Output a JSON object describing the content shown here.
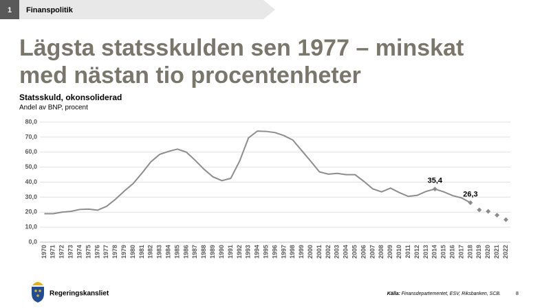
{
  "header": {
    "number": "1",
    "section": "Finanspolitik"
  },
  "title_line1": "Lägsta statsskulden sen 1977 – minskat",
  "title_line2": "med nästan tio procentenheter",
  "chart_data": {
    "type": "line",
    "title": "Statsskuld, okonsoliderad",
    "subtitle": "Andel av BNP, procent",
    "categories": [
      "1970",
      "1971",
      "1972",
      "1973",
      "1974",
      "1975",
      "1976",
      "1977",
      "1978",
      "1979",
      "1980",
      "1981",
      "1982",
      "1983",
      "1984",
      "1985",
      "1986",
      "1987",
      "1988",
      "1989",
      "1990",
      "1991",
      "1992",
      "1993",
      "1994",
      "1995",
      "1996",
      "1997",
      "1998",
      "1999",
      "2000",
      "2001",
      "2002",
      "2003",
      "2004",
      "2005",
      "2006",
      "2007",
      "2008",
      "2009",
      "2010",
      "2011",
      "2012",
      "2013",
      "2014",
      "2015",
      "2016",
      "2017",
      "2018",
      "2019",
      "2020",
      "2021",
      "2022"
    ],
    "series": [
      {
        "color": "#8c8c8c",
        "style": "line",
        "values": [
          19.0,
          19.0,
          20.0,
          20.5,
          21.8,
          22.0,
          21.3,
          23.8,
          28.5,
          34.0,
          39.0,
          46.0,
          53.5,
          58.5,
          60.5,
          62.0,
          60.0,
          54.5,
          48.5,
          43.5,
          41.0,
          42.5,
          54.0,
          69.5,
          74.0,
          73.8,
          73.0,
          71.0,
          68.0,
          61.0,
          54.0,
          46.8,
          45.3,
          45.8,
          45.0,
          45.0,
          40.5,
          35.5,
          33.5,
          36.0,
          33.0,
          30.5,
          31.2,
          33.8,
          35.4,
          33.5,
          31.0,
          29.5,
          26.3,
          null,
          null,
          null,
          null
        ],
        "value_labels": [
          null,
          null,
          null,
          null,
          null,
          null,
          null,
          null,
          null,
          null,
          null,
          null,
          null,
          null,
          null,
          null,
          null,
          null,
          null,
          null,
          null,
          null,
          null,
          null,
          null,
          null,
          null,
          null,
          null,
          null,
          null,
          null,
          null,
          null,
          null,
          null,
          null,
          null,
          null,
          null,
          null,
          null,
          null,
          null,
          "35,4",
          null,
          null,
          null,
          "26,3",
          null,
          null,
          null,
          null
        ]
      },
      {
        "color": "#8c8c8c",
        "style": "markers",
        "values": [
          null,
          null,
          null,
          null,
          null,
          null,
          null,
          null,
          null,
          null,
          null,
          null,
          null,
          null,
          null,
          null,
          null,
          null,
          null,
          null,
          null,
          null,
          null,
          null,
          null,
          null,
          null,
          null,
          null,
          null,
          null,
          null,
          null,
          null,
          null,
          null,
          null,
          null,
          null,
          null,
          null,
          null,
          null,
          null,
          null,
          null,
          null,
          null,
          null,
          21.5,
          20.5,
          18.0,
          15.0
        ]
      }
    ],
    "ylim": [
      0,
      80
    ],
    "yticks": [
      {
        "value": 0,
        "label": "0,0"
      },
      {
        "value": 10,
        "label": "10,0"
      },
      {
        "value": 20,
        "label": "20,0"
      },
      {
        "value": 30,
        "label": "30,0"
      },
      {
        "value": 40,
        "label": "40,0"
      },
      {
        "value": 50,
        "label": "50,0"
      },
      {
        "value": 60,
        "label": "60,0"
      },
      {
        "value": 70,
        "label": "70,0"
      },
      {
        "value": 80,
        "label": "80,0"
      }
    ],
    "grid": true
  },
  "footer": {
    "logo": "Regeringskansliet",
    "source_label": "Källa:",
    "source": "Finansdepartementet, ESV, Riksbanken, SCB.",
    "page": "8"
  }
}
